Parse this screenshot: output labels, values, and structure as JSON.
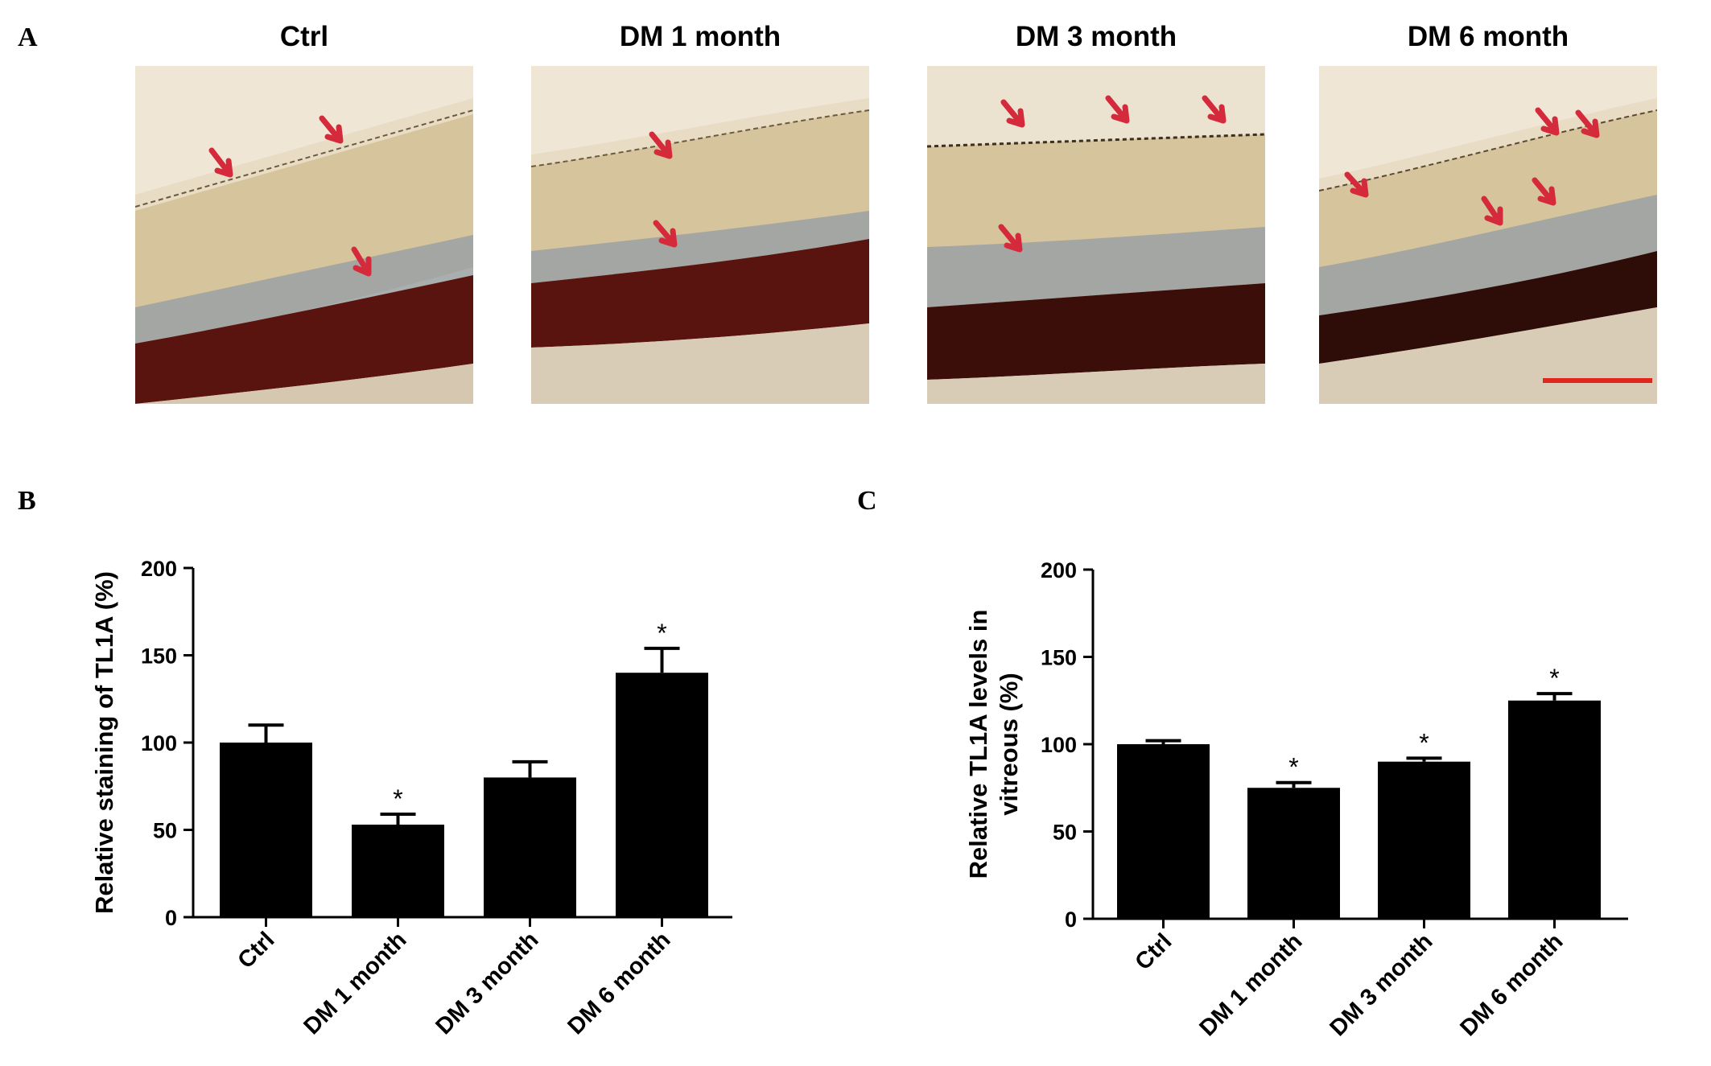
{
  "panel_letters": {
    "a": "A",
    "b": "B",
    "c": "C"
  },
  "images": [
    {
      "title": "Ctrl"
    },
    {
      "title": "DM 1 month"
    },
    {
      "title": "DM 3 month"
    },
    {
      "title": "DM 6 month"
    }
  ],
  "colors": {
    "bar": "#000000",
    "arrow": "#d42a3c",
    "scale_bar": "#e0261e",
    "tissue_bg": "#d8c8a4",
    "nuclear_layer": "#5a1410",
    "blue_layer": "#8a98a8"
  },
  "chart_data": [
    {
      "type": "bar",
      "panel": "B",
      "categories": [
        "Ctrl",
        "DM 1 month",
        "DM 3 month",
        "DM 6 month"
      ],
      "values": [
        100,
        53,
        80,
        140
      ],
      "errors": [
        10,
        6,
        9,
        14
      ],
      "significance": [
        "",
        "*",
        "",
        "*"
      ],
      "ylabel": "Relative staining of TL1A (%)",
      "ylim": [
        0,
        200
      ],
      "yticks": [
        0,
        50,
        100,
        150,
        200
      ],
      "grid": false
    },
    {
      "type": "bar",
      "panel": "C",
      "categories": [
        "Ctrl",
        "DM 1 month",
        "DM 3 month",
        "DM 6 month"
      ],
      "values": [
        100,
        75,
        90,
        125
      ],
      "errors": [
        2,
        3,
        2,
        4
      ],
      "significance": [
        "",
        "*",
        "*",
        "*"
      ],
      "ylabel_lines": [
        "Relative TL1A levels in",
        "vitreous (%)"
      ],
      "ylim": [
        0,
        200
      ],
      "yticks": [
        0,
        50,
        100,
        150,
        200
      ],
      "grid": false
    }
  ]
}
